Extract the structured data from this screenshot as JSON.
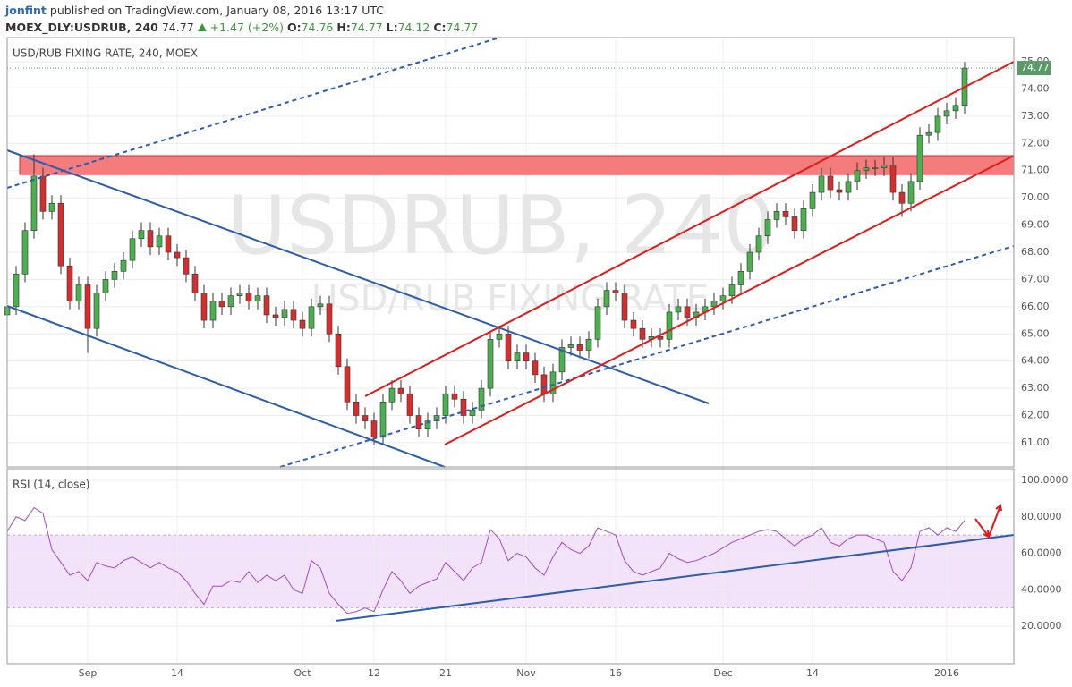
{
  "header": {
    "user": "jonfint",
    "published": "published on TradingView.com, January 08, 2016 13:17 UTC",
    "symbol": "MOEX_DLY:USDRUB, 240",
    "price": "74.77",
    "change": "+1.47 (+2%)",
    "ohlc": [
      {
        "label": "O:",
        "value": "74.76"
      },
      {
        "label": "H:",
        "value": "74.77"
      },
      {
        "label": "L:",
        "value": "74.12"
      },
      {
        "label": "C:",
        "value": "74.77"
      }
    ]
  },
  "chart_data": {
    "type": "candlestick",
    "title": "USD/RUB FIXING RATE, 240, MOEX",
    "watermark": [
      "USDRUB, 240",
      "USD/RUB FIXING RATE"
    ],
    "up_color": "#4caf50",
    "down_color": "#d32f2f",
    "last_price": 74.77,
    "last_price_color": "#5b9a68",
    "grid": true,
    "xlim": [
      0,
      112.5
    ],
    "xticks": [
      {
        "value": 9,
        "label": "Sep"
      },
      {
        "value": 19,
        "label": "14"
      },
      {
        "value": 33,
        "label": "Oct"
      },
      {
        "value": 41,
        "label": "12"
      },
      {
        "value": 49,
        "label": "21"
      },
      {
        "value": 58,
        "label": "Nov"
      },
      {
        "value": 68,
        "label": "16"
      },
      {
        "value": 80,
        "label": "Dec"
      },
      {
        "value": 90,
        "label": "14"
      },
      {
        "value": 105,
        "label": "2016"
      }
    ],
    "ylim": [
      60.11,
      75.89
    ],
    "yticks": [
      {
        "value": 61,
        "label": "61.00"
      },
      {
        "value": 62,
        "label": "62.00"
      },
      {
        "value": 63,
        "label": "63.00"
      },
      {
        "value": 64,
        "label": "64.00"
      },
      {
        "value": 65,
        "label": "65.00"
      },
      {
        "value": 66,
        "label": "66.00"
      },
      {
        "value": 67,
        "label": "67.00"
      },
      {
        "value": 68,
        "label": "68.00"
      },
      {
        "value": 69,
        "label": "69.00"
      },
      {
        "value": 70,
        "label": "70.00"
      },
      {
        "value": 71,
        "label": "71.00"
      },
      {
        "value": 72,
        "label": "72.00"
      },
      {
        "value": 73,
        "label": "73.00"
      },
      {
        "value": 74,
        "label": "74.00"
      },
      {
        "value": 75,
        "label": "75.00"
      }
    ],
    "candles": [
      [
        65.7,
        66.3,
        65.4,
        66.0
      ],
      [
        66.0,
        67.5,
        65.7,
        67.2
      ],
      [
        67.2,
        69.1,
        66.9,
        68.8
      ],
      [
        68.8,
        71.6,
        68.5,
        70.8
      ],
      [
        70.8,
        71.1,
        69.2,
        69.5
      ],
      [
        69.5,
        70.1,
        69.2,
        69.8
      ],
      [
        69.8,
        70.1,
        67.2,
        67.5
      ],
      [
        67.5,
        67.8,
        65.9,
        66.2
      ],
      [
        66.2,
        67.1,
        65.9,
        66.8
      ],
      [
        66.8,
        67.1,
        64.3,
        65.2
      ],
      [
        65.2,
        66.8,
        64.9,
        66.5
      ],
      [
        66.5,
        67.3,
        66.2,
        67.0
      ],
      [
        67.0,
        67.6,
        66.7,
        67.3
      ],
      [
        67.3,
        68.0,
        67.0,
        67.7
      ],
      [
        67.7,
        68.8,
        67.4,
        68.5
      ],
      [
        68.5,
        69.1,
        68.2,
        68.8
      ],
      [
        68.8,
        69.1,
        67.9,
        68.2
      ],
      [
        68.2,
        68.9,
        67.9,
        68.6
      ],
      [
        68.6,
        68.9,
        67.7,
        68.0
      ],
      [
        68.0,
        68.3,
        67.5,
        67.8
      ],
      [
        67.8,
        68.1,
        66.9,
        67.2
      ],
      [
        67.2,
        67.5,
        66.2,
        66.5
      ],
      [
        66.5,
        66.8,
        65.2,
        65.5
      ],
      [
        65.5,
        66.5,
        65.2,
        66.2
      ],
      [
        66.2,
        66.5,
        65.7,
        66.0
      ],
      [
        66.0,
        66.7,
        65.7,
        66.4
      ],
      [
        66.4,
        66.8,
        66.1,
        66.5
      ],
      [
        66.5,
        66.8,
        65.9,
        66.2
      ],
      [
        66.2,
        66.7,
        65.9,
        66.4
      ],
      [
        66.4,
        66.7,
        65.4,
        65.7
      ],
      [
        65.7,
        66.0,
        65.3,
        65.6
      ],
      [
        65.6,
        66.2,
        65.3,
        65.9
      ],
      [
        65.9,
        66.2,
        65.2,
        65.5
      ],
      [
        65.5,
        65.8,
        64.9,
        65.2
      ],
      [
        65.2,
        66.3,
        64.9,
        66.0
      ],
      [
        66.0,
        66.4,
        65.7,
        66.1
      ],
      [
        66.1,
        66.4,
        64.7,
        65.0
      ],
      [
        65.0,
        65.3,
        63.5,
        63.8
      ],
      [
        63.8,
        64.1,
        62.2,
        62.5
      ],
      [
        62.5,
        62.8,
        61.7,
        62.0
      ],
      [
        62.0,
        62.3,
        61.5,
        61.8
      ],
      [
        61.8,
        62.1,
        60.9,
        61.2
      ],
      [
        61.2,
        62.8,
        60.9,
        62.5
      ],
      [
        62.5,
        63.3,
        62.2,
        63.0
      ],
      [
        63.0,
        63.3,
        62.5,
        62.8
      ],
      [
        62.8,
        63.1,
        61.7,
        62.0
      ],
      [
        62.0,
        62.3,
        61.2,
        61.5
      ],
      [
        61.5,
        62.1,
        61.2,
        61.8
      ],
      [
        61.8,
        62.3,
        61.5,
        62.0
      ],
      [
        62.0,
        63.1,
        61.7,
        62.8
      ],
      [
        62.8,
        63.1,
        62.3,
        62.6
      ],
      [
        62.6,
        62.9,
        61.7,
        62.0
      ],
      [
        62.0,
        62.5,
        61.7,
        62.2
      ],
      [
        62.2,
        63.3,
        61.9,
        63.0
      ],
      [
        63.0,
        65.1,
        62.7,
        64.8
      ],
      [
        64.8,
        65.3,
        64.5,
        65.0
      ],
      [
        65.0,
        65.3,
        63.7,
        64.0
      ],
      [
        64.0,
        64.6,
        63.7,
        64.3
      ],
      [
        64.3,
        64.6,
        63.7,
        64.0
      ],
      [
        64.0,
        64.3,
        63.2,
        63.5
      ],
      [
        63.5,
        63.8,
        62.5,
        62.8
      ],
      [
        62.8,
        63.9,
        62.5,
        63.6
      ],
      [
        63.6,
        64.8,
        63.3,
        64.5
      ],
      [
        64.5,
        64.9,
        64.2,
        64.6
      ],
      [
        64.6,
        64.9,
        64.1,
        64.4
      ],
      [
        64.4,
        65.1,
        64.1,
        64.8
      ],
      [
        64.8,
        66.3,
        64.5,
        66.0
      ],
      [
        66.0,
        66.9,
        65.7,
        66.6
      ],
      [
        66.6,
        66.9,
        66.2,
        66.5
      ],
      [
        66.5,
        66.8,
        65.2,
        65.5
      ],
      [
        65.5,
        65.8,
        64.9,
        65.2
      ],
      [
        65.2,
        65.5,
        64.5,
        64.8
      ],
      [
        64.8,
        65.2,
        64.5,
        64.9
      ],
      [
        64.9,
        65.2,
        64.5,
        64.8
      ],
      [
        64.8,
        66.1,
        64.5,
        65.8
      ],
      [
        65.8,
        66.3,
        65.5,
        66.0
      ],
      [
        66.0,
        66.3,
        65.3,
        65.6
      ],
      [
        65.6,
        66.1,
        65.3,
        65.8
      ],
      [
        65.8,
        66.3,
        65.5,
        66.0
      ],
      [
        66.0,
        66.5,
        65.7,
        66.2
      ],
      [
        66.2,
        66.7,
        65.9,
        66.4
      ],
      [
        66.4,
        67.1,
        66.1,
        66.8
      ],
      [
        66.8,
        67.6,
        66.5,
        67.3
      ],
      [
        67.3,
        68.3,
        67.0,
        68.0
      ],
      [
        68.0,
        68.9,
        67.7,
        68.6
      ],
      [
        68.6,
        69.5,
        68.3,
        69.2
      ],
      [
        69.2,
        69.8,
        68.9,
        69.5
      ],
      [
        69.5,
        69.8,
        69.0,
        69.3
      ],
      [
        69.3,
        69.6,
        68.5,
        68.8
      ],
      [
        68.8,
        69.9,
        68.5,
        69.6
      ],
      [
        69.6,
        70.5,
        69.3,
        70.2
      ],
      [
        70.2,
        71.1,
        69.9,
        70.8
      ],
      [
        70.8,
        71.1,
        70.0,
        70.3
      ],
      [
        70.3,
        70.6,
        69.9,
        70.2
      ],
      [
        70.2,
        70.9,
        69.9,
        70.6
      ],
      [
        70.6,
        71.3,
        70.3,
        71.0
      ],
      [
        71.0,
        71.4,
        70.7,
        71.1
      ],
      [
        71.1,
        71.4,
        70.8,
        71.1
      ],
      [
        71.1,
        71.5,
        70.8,
        71.2
      ],
      [
        71.2,
        71.5,
        69.9,
        70.2
      ],
      [
        70.2,
        70.5,
        69.3,
        69.8
      ],
      [
        69.8,
        70.9,
        69.5,
        70.6
      ],
      [
        70.6,
        72.6,
        70.3,
        72.3
      ],
      [
        72.3,
        72.7,
        72.0,
        72.4
      ],
      [
        72.4,
        73.3,
        72.1,
        73.0
      ],
      [
        73.0,
        73.5,
        72.7,
        73.2
      ],
      [
        73.2,
        73.7,
        72.9,
        73.4
      ],
      [
        73.4,
        75.0,
        73.1,
        74.77
      ]
    ],
    "rsi": {
      "type": "line",
      "title": "RSI (14, close)",
      "color": "#a349c3",
      "band": [
        30,
        70
      ],
      "band_color": "#f3e3fa",
      "ylim": [
        -0.6,
        106.4
      ],
      "yticks": [
        {
          "value": 20,
          "label": "20.0000"
        },
        {
          "value": 40,
          "label": "40.0000"
        },
        {
          "value": 60,
          "label": "60.0000"
        },
        {
          "value": 80,
          "label": "80.0000"
        },
        {
          "value": 100,
          "label": "100.0000"
        }
      ],
      "values": [
        72,
        80,
        78,
        85,
        82,
        62,
        55,
        48,
        50,
        45,
        55,
        53,
        52,
        56,
        58,
        55,
        52,
        55,
        52,
        50,
        45,
        38,
        32,
        42,
        42,
        45,
        44,
        50,
        44,
        48,
        45,
        48,
        40,
        38,
        56,
        52,
        38,
        32,
        27,
        28,
        30,
        28,
        40,
        50,
        45,
        38,
        42,
        44,
        46,
        55,
        50,
        45,
        52,
        55,
        73,
        68,
        56,
        60,
        58,
        52,
        48,
        58,
        66,
        62,
        60,
        64,
        74,
        72,
        70,
        56,
        50,
        48,
        50,
        52,
        60,
        57,
        55,
        56,
        58,
        60,
        63,
        66,
        68,
        70,
        72,
        73,
        72,
        68,
        64,
        68,
        70,
        74,
        66,
        64,
        68,
        70,
        70,
        68,
        66,
        50,
        45,
        52,
        72,
        74,
        70,
        74,
        72,
        78
      ]
    }
  }
}
